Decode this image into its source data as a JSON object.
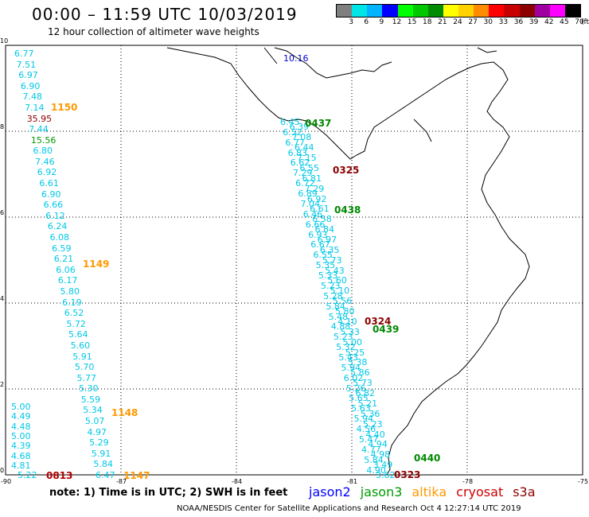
{
  "header": {
    "title": "00:00 – 11:59 UTC 10/03/2019",
    "subtitle": "12 hour collection of altimeter wave heights"
  },
  "legend": {
    "colors": [
      "#7f7f7f",
      "#00e5e5",
      "#00b4ff",
      "#0000ff",
      "#00ff00",
      "#00c800",
      "#008c00",
      "#ffff00",
      "#ffd200",
      "#ff8c00",
      "#ff0000",
      "#c80000",
      "#8c0000",
      "#a000a0",
      "#ff00ff",
      "#000000"
    ],
    "labels": [
      "3",
      "6",
      "9",
      "12",
      "15",
      "18",
      "21",
      "24",
      "27",
      "30",
      "33",
      "36",
      "39",
      "42",
      "45",
      "70"
    ],
    "unit": "(ft)"
  },
  "axes": {
    "x_ticks": [
      "-90",
      "-87",
      "-84",
      "-81",
      "-78",
      "-75"
    ],
    "y_ticks": [
      "10",
      "8",
      "6",
      "4",
      "2",
      "0"
    ]
  },
  "tracks": {
    "labels": [
      {
        "text": "1150",
        "color": "#ff9900"
      },
      {
        "text": "1149",
        "color": "#ff9900"
      },
      {
        "text": "1148",
        "color": "#ff9900"
      },
      {
        "text": "1147",
        "color": "#ff9900"
      },
      {
        "text": "0813",
        "color": "#b00000"
      },
      {
        "text": "0437",
        "color": "#008800"
      },
      {
        "text": "0438",
        "color": "#008800"
      },
      {
        "text": "0439",
        "color": "#008800"
      },
      {
        "text": "0440",
        "color": "#008800"
      },
      {
        "text": "0323",
        "color": "#8b0000"
      },
      {
        "text": "0324",
        "color": "#8b0000"
      },
      {
        "text": "0325",
        "color": "#8b0000"
      }
    ],
    "altika_values": [
      "6.77",
      "7.51",
      "6.97",
      "6.90",
      "7.48",
      "7.14",
      "35.95",
      "7.44",
      "15.56",
      "6.80",
      "7.46",
      "6.92",
      "6.61",
      "6.90",
      "6.66",
      "6.12",
      "6.24",
      "6.08",
      "6.59",
      "6.21",
      "6.06",
      "6.17",
      "5.80",
      "6.19",
      "6.52",
      "5.72",
      "5.64",
      "5.60",
      "5.91",
      "5.70",
      "5.77",
      "5.30",
      "5.59",
      "5.34",
      "5.07",
      "4.97",
      "5.29",
      "5.91",
      "5.84",
      "6.47"
    ],
    "s3a_values": [
      "5.00",
      "4.49",
      "4.48",
      "5.00",
      "4.39",
      "4.68",
      "4.81",
      "5.22"
    ],
    "jason3_values": [
      "6.45",
      "6.39",
      "6.52",
      "7.08",
      "6.77",
      "6.44",
      "6.83",
      "7.15",
      "6.62",
      "6.55",
      "7.29",
      "6.81",
      "6.72",
      "7.29",
      "6.89",
      "6.92",
      "7.04",
      "6.61",
      "6.46",
      "6.58",
      "6.66",
      "6.84",
      "6.93",
      "6.97",
      "6.67",
      "6.35",
      "6.55",
      "5.73",
      "5.35",
      "5.43",
      "5.33",
      "5.60",
      "5.23",
      "5.10",
      "5.28",
      "5.56",
      "5.84",
      "5.80",
      "5.48",
      "4.10",
      "4.88",
      "5.33",
      "5.23",
      "5.00",
      "5.32",
      "5.25",
      "5.43",
      "5.38",
      "5.94",
      "5.86",
      "6.02",
      "5.73",
      "5.26",
      "6.82",
      "5.65",
      "5.21",
      "5.63",
      "5.36",
      "5.94",
      "5.23",
      "4.56",
      "4.40",
      "5.47",
      "4.94",
      "4.77",
      "4.98",
      "5.84",
      "3.49",
      "4.90",
      "3.62"
    ],
    "special_values": [
      {
        "text": "10.16",
        "color": "#0000cc"
      }
    ]
  },
  "footer": {
    "note": "note: 1) Time is in UTC; 2) SWH is in feet",
    "satellites": [
      {
        "name": "jason2",
        "color": "#0000ff"
      },
      {
        "name": "jason3",
        "color": "#009900"
      },
      {
        "name": "altika",
        "color": "#ff9900"
      },
      {
        "name": "cryosat",
        "color": "#cc0000"
      },
      {
        "name": "s3a",
        "color": "#8b0000"
      }
    ],
    "credit": "NOAA/NESDIS Center for Satellite Applications and Research    Oct  4 12:27:14 UTC 2019"
  }
}
